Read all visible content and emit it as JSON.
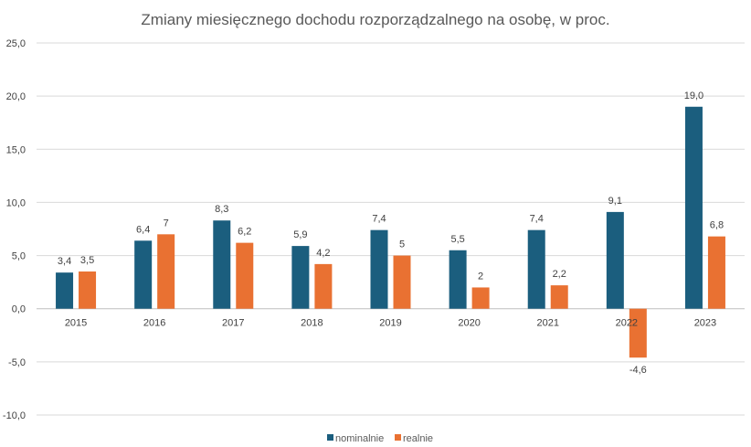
{
  "chart_data": {
    "type": "bar",
    "title": "Zmiany miesięcznego dochodu rozporządzalnego na osobę, w proc.",
    "xlabel": "",
    "ylabel": "",
    "ylim": [
      -10,
      25
    ],
    "ytick_step": 5,
    "ytick_labels": [
      "-10,0",
      "-5,0",
      "0,0",
      "5,0",
      "10,0",
      "15,0",
      "20,0",
      "25,0"
    ],
    "grid": true,
    "legend_position": "bottom",
    "categories": [
      "2015",
      "2016",
      "2017",
      "2018",
      "2019",
      "2020",
      "2021",
      "2022",
      "2023"
    ],
    "series": [
      {
        "name": "nominalnie",
        "color": "#1b5e7e",
        "values": [
          3.4,
          6.4,
          8.3,
          5.9,
          7.4,
          5.5,
          7.4,
          9.1,
          19.0
        ],
        "labels": [
          "3,4",
          "6,4",
          "8,3",
          "5,9",
          "7,4",
          "5,5",
          "7,4",
          "9,1",
          "19,0"
        ]
      },
      {
        "name": "realnie",
        "color": "#e97132",
        "values": [
          3.5,
          7,
          6.2,
          4.2,
          5,
          2,
          2.2,
          -4.6,
          6.8
        ],
        "labels": [
          "3,5",
          "7",
          "6,2",
          "4,2",
          "5",
          "2",
          "2,2",
          "-4,6",
          "6,8"
        ]
      }
    ]
  }
}
